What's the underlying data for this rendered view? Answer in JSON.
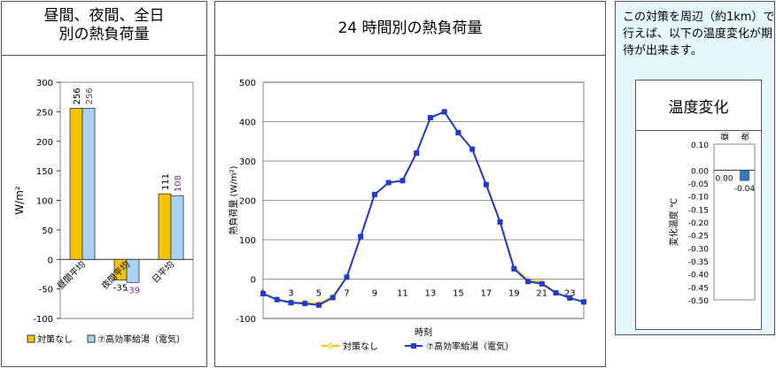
{
  "colors": {
    "orange": "#f5c400",
    "blue": "#a8d3f5",
    "navy": "#1f3bd1",
    "purple": "#7030a0",
    "chart3_bar": "#2f7bbf"
  },
  "panel1": {
    "title_line1": "昼間、夜間、全日",
    "title_line2": "別の熱負荷量",
    "legend": [
      "対策なし",
      "⑦高効率給湯（電気）"
    ]
  },
  "panel2": {
    "title": "24 時間別の熱負荷量"
  },
  "panel3": {
    "note": "この対策を周辺（約1km）で行えば、以下の温度変化が期待が出来ます。",
    "inner_title": "温度変化"
  },
  "chart_data": [
    {
      "type": "bar",
      "ylabel": "W/m²",
      "ylim": [
        -100,
        300
      ],
      "yticks": [
        -100,
        -50,
        0,
        50,
        100,
        150,
        200,
        250,
        300
      ],
      "categories": [
        "昼間平均",
        "夜間平均",
        "日平均"
      ],
      "series": [
        {
          "name": "対策なし",
          "values": [
            256,
            -35,
            111
          ],
          "labels": [
            "256",
            "-35",
            "111"
          ]
        },
        {
          "name": "⑦高効率給湯（電気）",
          "values": [
            256,
            -39,
            108
          ],
          "labels": [
            "256",
            "-39",
            "108"
          ]
        }
      ],
      "legend_position": "bottom"
    },
    {
      "type": "line",
      "ylabel": "熱負荷量 (W/m²)",
      "xlabel": "時刻",
      "ylim": [
        -100,
        500
      ],
      "yticks": [
        -100,
        0,
        100,
        200,
        300,
        400,
        500
      ],
      "xticks": [
        1,
        3,
        5,
        7,
        9,
        11,
        13,
        15,
        17,
        19,
        21,
        23
      ],
      "x": [
        1,
        2,
        3,
        4,
        5,
        6,
        7,
        8,
        9,
        10,
        11,
        12,
        13,
        14,
        15,
        16,
        17,
        18,
        19,
        20,
        21,
        22,
        23,
        24
      ],
      "series": [
        {
          "name": "対策なし",
          "values": [
            -37,
            -52,
            -58,
            -60,
            -62,
            -45,
            5,
            108,
            215,
            245,
            250,
            320,
            410,
            425,
            372,
            330,
            240,
            145,
            30,
            -2,
            -8,
            -35,
            -48,
            -58
          ]
        },
        {
          "name": "⑦高効率給湯（電気）",
          "values": [
            -37,
            -52,
            -60,
            -62,
            -66,
            -47,
            5,
            108,
            215,
            245,
            250,
            320,
            410,
            425,
            372,
            330,
            240,
            145,
            26,
            -6,
            -12,
            -35,
            -48,
            -58
          ]
        }
      ],
      "legend_position": "bottom"
    },
    {
      "type": "bar",
      "ylabel": "変化温度 ℃",
      "ylim": [
        -0.5,
        0.1
      ],
      "yticks": [
        "0.10",
        "0.00",
        "-0.05",
        "-0.10",
        "-0.15",
        "-0.20",
        "-0.25",
        "-0.30",
        "-0.35",
        "-0.40",
        "-0.45",
        "-0.50"
      ],
      "categories": [
        "昼間平均",
        "夜間平均"
      ],
      "values": [
        0.0,
        -0.04
      ],
      "labels": [
        "0.00",
        "-0.04"
      ]
    }
  ]
}
